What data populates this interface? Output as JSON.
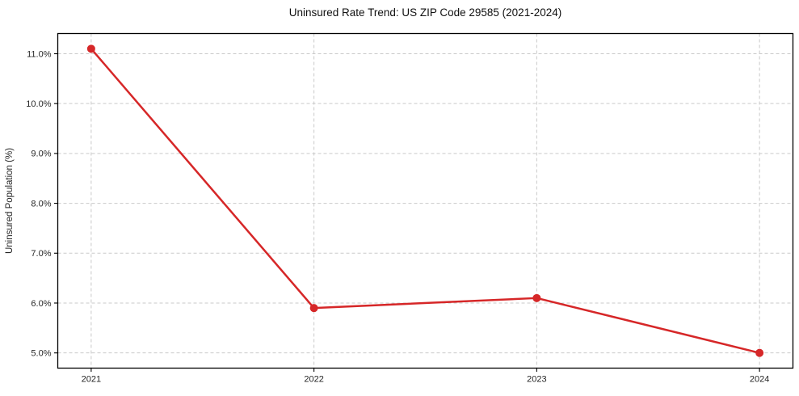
{
  "chart_data": {
    "type": "line",
    "title": "Uninsured Rate Trend: US ZIP Code 29585 (2021-2024)",
    "xlabel": "",
    "ylabel": "Uninsured Population (%)",
    "categories": [
      2021,
      2022,
      2023,
      2024
    ],
    "series": [
      {
        "name": "Uninsured rate",
        "values": [
          11.1,
          5.9,
          6.1,
          5.0
        ]
      }
    ],
    "x_tick_labels": [
      "2021",
      "2022",
      "2023",
      "2024"
    ],
    "y_tick_values": [
      5.0,
      6.0,
      7.0,
      8.0,
      9.0,
      10.0,
      11.0
    ],
    "y_tick_labels": [
      "5.0%",
      "6.0%",
      "7.0%",
      "8.0%",
      "9.0%",
      "10.0%",
      "11.0%"
    ],
    "xlim": [
      2020.85,
      2024.15
    ],
    "ylim": [
      4.695,
      11.405
    ],
    "grid": "both-dashed",
    "legend_position": "none",
    "line_color": "#d62728",
    "marker": "circle",
    "grid_color": "#c9c9c9",
    "spine_color": "#000000",
    "background_color": "#ffffff"
  }
}
